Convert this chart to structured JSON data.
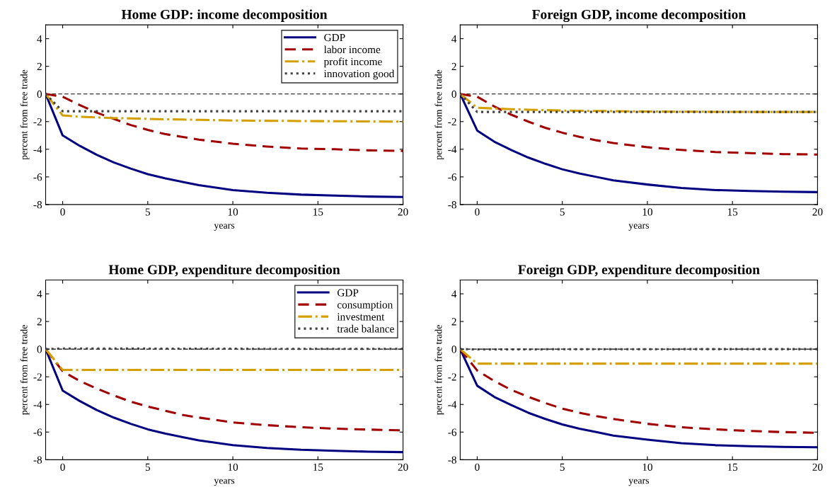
{
  "chart_data": [
    {
      "type": "line",
      "title": "Home GDP: income decomposition",
      "xlabel": "years",
      "ylabel": "percent from free trade",
      "x": [
        -1,
        0,
        1,
        2,
        3,
        4,
        5,
        6,
        7,
        8,
        10,
        12,
        14,
        16,
        18,
        20
      ],
      "xlim": [
        -1,
        20
      ],
      "xticks": [
        0,
        5,
        10,
        15,
        20
      ],
      "ylim": [
        -8,
        5
      ],
      "yticks": [
        -8,
        -6,
        -4,
        -2,
        0,
        2,
        4
      ],
      "grid": false,
      "legend": "top right",
      "marker": "none",
      "ref_lines": [
        {
          "axis": "y",
          "value": 0,
          "color": "#000000",
          "line_style": "dashed"
        }
      ],
      "series": [
        {
          "name": "GDP",
          "color": "#000080",
          "line_style": "solid",
          "values": [
            0,
            -3.0,
            -3.75,
            -4.4,
            -4.95,
            -5.4,
            -5.8,
            -6.1,
            -6.35,
            -6.6,
            -6.95,
            -7.15,
            -7.28,
            -7.35,
            -7.42,
            -7.45
          ]
        },
        {
          "name": "labor income",
          "color": "#a00000",
          "line_style": "dashed",
          "values": [
            0,
            -0.2,
            -0.8,
            -1.35,
            -1.8,
            -2.25,
            -2.6,
            -2.9,
            -3.1,
            -3.3,
            -3.6,
            -3.8,
            -3.95,
            -4.0,
            -4.08,
            -4.12
          ]
        },
        {
          "name": "profit income",
          "color": "#d4a000",
          "line_style": "dashdot",
          "values": [
            0,
            -1.55,
            -1.65,
            -1.7,
            -1.74,
            -1.77,
            -1.8,
            -1.83,
            -1.85,
            -1.87,
            -1.92,
            -1.94,
            -1.96,
            -1.97,
            -1.99,
            -2.0
          ]
        },
        {
          "name": "innovation good",
          "color": "#404040",
          "line_style": "dotted",
          "values": [
            0,
            -1.25,
            -1.25,
            -1.25,
            -1.25,
            -1.25,
            -1.25,
            -1.25,
            -1.25,
            -1.25,
            -1.25,
            -1.25,
            -1.25,
            -1.25,
            -1.25,
            -1.25
          ]
        }
      ]
    },
    {
      "type": "line",
      "title": "Foreign GDP, income decomposition",
      "xlabel": "years",
      "ylabel": "percent from free trade",
      "x": [
        -1,
        0,
        1,
        2,
        3,
        4,
        5,
        6,
        7,
        8,
        10,
        12,
        14,
        16,
        18,
        20
      ],
      "xlim": [
        -1,
        20
      ],
      "xticks": [
        0,
        5,
        10,
        15,
        20
      ],
      "ylim": [
        -8,
        5
      ],
      "yticks": [
        -8,
        -6,
        -4,
        -2,
        0,
        2,
        4
      ],
      "grid": false,
      "marker": "none",
      "ref_lines": [
        {
          "axis": "y",
          "value": 0,
          "color": "#000000",
          "line_style": "dashed"
        }
      ],
      "series": [
        {
          "color": "#000080",
          "line_style": "solid",
          "values": [
            0,
            -2.65,
            -3.45,
            -4.05,
            -4.6,
            -5.05,
            -5.45,
            -5.75,
            -6.0,
            -6.25,
            -6.55,
            -6.8,
            -6.95,
            -7.02,
            -7.07,
            -7.1
          ]
        },
        {
          "color": "#a00000",
          "line_style": "dashed",
          "values": [
            0,
            -0.2,
            -0.9,
            -1.5,
            -2.0,
            -2.45,
            -2.8,
            -3.1,
            -3.35,
            -3.55,
            -3.85,
            -4.05,
            -4.2,
            -4.28,
            -4.35,
            -4.38
          ]
        },
        {
          "color": "#d4a000",
          "line_style": "dashdot",
          "values": [
            0,
            -1.0,
            -1.05,
            -1.1,
            -1.14,
            -1.17,
            -1.2,
            -1.22,
            -1.23,
            -1.24,
            -1.27,
            -1.28,
            -1.29,
            -1.3,
            -1.3,
            -1.3
          ]
        },
        {
          "color": "#404040",
          "line_style": "dotted",
          "values": [
            0,
            -1.3,
            -1.3,
            -1.3,
            -1.3,
            -1.3,
            -1.3,
            -1.3,
            -1.3,
            -1.3,
            -1.3,
            -1.3,
            -1.3,
            -1.3,
            -1.3,
            -1.3
          ]
        }
      ]
    },
    {
      "type": "line",
      "title": "Home GDP, expenditure decomposition",
      "xlabel": "years",
      "ylabel": "percent from free trade",
      "x": [
        -1,
        0,
        1,
        2,
        3,
        4,
        5,
        6,
        7,
        8,
        10,
        12,
        14,
        16,
        18,
        20
      ],
      "xlim": [
        -1,
        20
      ],
      "xticks": [
        0,
        5,
        10,
        15,
        20
      ],
      "ylim": [
        -8,
        5
      ],
      "yticks": [
        -8,
        -6,
        -4,
        -2,
        0,
        2,
        4
      ],
      "grid": false,
      "legend": "top right",
      "marker": "none",
      "ref_lines": [
        {
          "axis": "y",
          "value": 0,
          "color": "#000000",
          "line_style": "dashed"
        }
      ],
      "series": [
        {
          "name": "GDP",
          "color": "#000080",
          "line_style": "solid",
          "values": [
            0,
            -3.0,
            -3.75,
            -4.4,
            -4.95,
            -5.4,
            -5.8,
            -6.1,
            -6.35,
            -6.6,
            -6.95,
            -7.15,
            -7.28,
            -7.35,
            -7.42,
            -7.45
          ]
        },
        {
          "name": "consumption",
          "color": "#a00000",
          "line_style": "dashed",
          "values": [
            0,
            -1.6,
            -2.3,
            -2.85,
            -3.35,
            -3.8,
            -4.15,
            -4.45,
            -4.75,
            -4.95,
            -5.3,
            -5.5,
            -5.65,
            -5.75,
            -5.82,
            -5.88
          ]
        },
        {
          "name": "investment",
          "color": "#d4a000",
          "line_style": "dashdot",
          "values": [
            0,
            -1.5,
            -1.5,
            -1.5,
            -1.5,
            -1.5,
            -1.5,
            -1.5,
            -1.5,
            -1.5,
            -1.5,
            -1.5,
            -1.5,
            -1.5,
            -1.5,
            -1.5
          ]
        },
        {
          "name": "trade balance",
          "color": "#404040",
          "line_style": "dotted",
          "values": [
            0,
            0.05,
            0.05,
            0.05,
            0.04,
            0.04,
            0.04,
            0.03,
            0.03,
            0.03,
            0.03,
            0.02,
            0.02,
            0.02,
            0.02,
            0.02
          ]
        }
      ]
    },
    {
      "type": "line",
      "title": "Foreign GDP, expenditure decomposition",
      "xlabel": "years",
      "ylabel": "percent from free trade",
      "x": [
        -1,
        0,
        1,
        2,
        3,
        4,
        5,
        6,
        7,
        8,
        10,
        12,
        14,
        16,
        18,
        20
      ],
      "xlim": [
        -1,
        20
      ],
      "xticks": [
        0,
        5,
        10,
        15,
        20
      ],
      "ylim": [
        -8,
        5
      ],
      "yticks": [
        -8,
        -6,
        -4,
        -2,
        0,
        2,
        4
      ],
      "grid": false,
      "marker": "none",
      "ref_lines": [
        {
          "axis": "y",
          "value": 0,
          "color": "#000000",
          "line_style": "dashed"
        }
      ],
      "series": [
        {
          "color": "#000080",
          "line_style": "solid",
          "values": [
            0,
            -2.65,
            -3.45,
            -4.05,
            -4.6,
            -5.05,
            -5.45,
            -5.75,
            -6.0,
            -6.25,
            -6.55,
            -6.8,
            -6.95,
            -7.02,
            -7.07,
            -7.1
          ]
        },
        {
          "color": "#a00000",
          "line_style": "dashed",
          "values": [
            0,
            -1.55,
            -2.3,
            -2.95,
            -3.45,
            -3.9,
            -4.3,
            -4.6,
            -4.85,
            -5.05,
            -5.4,
            -5.65,
            -5.8,
            -5.92,
            -6.0,
            -6.05
          ]
        },
        {
          "color": "#d4a000",
          "line_style": "dashdot",
          "values": [
            0,
            -1.05,
            -1.05,
            -1.05,
            -1.05,
            -1.05,
            -1.05,
            -1.05,
            -1.05,
            -1.05,
            -1.05,
            -1.05,
            -1.05,
            -1.05,
            -1.05,
            -1.05
          ]
        },
        {
          "color": "#404040",
          "line_style": "dotted",
          "values": [
            0,
            -0.02,
            -0.02,
            -0.02,
            -0.02,
            -0.01,
            -0.01,
            -0.01,
            -0.01,
            -0.01,
            -0.01,
            0,
            0,
            0,
            0,
            0
          ]
        }
      ]
    }
  ]
}
